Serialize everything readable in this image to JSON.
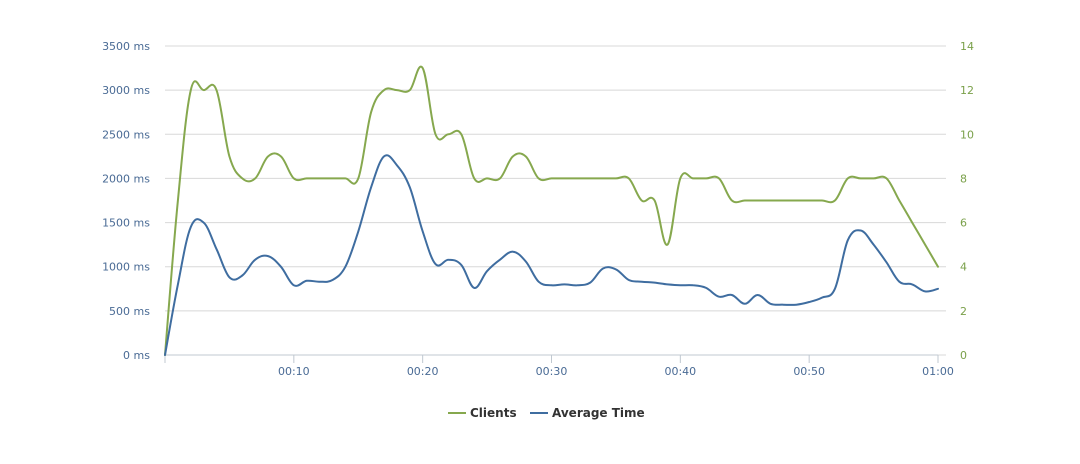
{
  "colors": {
    "clients": "#86a84e",
    "average_time": "#3f6da0",
    "grid": "#d8d8d8",
    "axis": "#c0c8d0"
  },
  "chart_data": {
    "type": "line",
    "x_ticks": [
      "00:10",
      "00:20",
      "00:30",
      "00:40",
      "00:50",
      "01:00"
    ],
    "x_tick_values": [
      10,
      20,
      30,
      40,
      50,
      60
    ],
    "xlim": [
      0,
      60
    ],
    "y_left_ticks": [
      "0 ms",
      "500 ms",
      "1000 ms",
      "1500 ms",
      "2000 ms",
      "2500 ms",
      "3000 ms",
      "3500 ms"
    ],
    "y_left_lim": [
      0,
      3500
    ],
    "y_right_ticks": [
      "0",
      "2",
      "4",
      "6",
      "8",
      "10",
      "12",
      "14"
    ],
    "y_right_lim": [
      0,
      14
    ],
    "grid": true,
    "legend_position": "bottom-center",
    "series": [
      {
        "name": "Clients",
        "axis": "right",
        "color": "#86a84e",
        "x": [
          0,
          1,
          2,
          3,
          4,
          5,
          6,
          7,
          8,
          9,
          10,
          11,
          12,
          13,
          14,
          15,
          16,
          17,
          18,
          19,
          20,
          21,
          22,
          23,
          24,
          25,
          26,
          27,
          28,
          29,
          30,
          31,
          32,
          33,
          34,
          35,
          36,
          37,
          38,
          39,
          40,
          41,
          42,
          43,
          44,
          45,
          46,
          47,
          48,
          49,
          50,
          51,
          52,
          53,
          54,
          55,
          56,
          57,
          58,
          59,
          60
        ],
        "values": [
          0,
          7,
          12,
          12,
          12,
          9,
          8,
          8,
          9,
          9,
          8,
          8,
          8,
          8,
          8,
          8,
          11,
          12,
          12,
          12,
          13,
          10,
          10,
          10,
          8,
          8,
          8,
          9,
          9,
          8,
          8,
          8,
          8,
          8,
          8,
          8,
          8,
          7,
          7,
          5,
          8,
          8,
          8,
          8,
          7,
          7,
          7,
          7,
          7,
          7,
          7,
          7,
          7,
          8,
          8,
          8,
          8,
          7,
          6,
          5,
          4
        ]
      },
      {
        "name": "Average Time",
        "axis": "left",
        "color": "#3f6da0",
        "x": [
          0,
          1,
          2,
          3,
          4,
          5,
          6,
          7,
          8,
          9,
          10,
          11,
          12,
          13,
          14,
          15,
          16,
          17,
          18,
          19,
          20,
          21,
          22,
          23,
          24,
          25,
          26,
          27,
          28,
          29,
          30,
          31,
          32,
          33,
          34,
          35,
          36,
          37,
          38,
          39,
          40,
          41,
          42,
          43,
          44,
          45,
          46,
          47,
          48,
          49,
          50,
          51,
          52,
          53,
          54,
          55,
          56,
          57,
          58,
          59,
          60
        ],
        "values": [
          0,
          800,
          1450,
          1500,
          1200,
          880,
          900,
          1080,
          1120,
          1000,
          790,
          840,
          830,
          850,
          1000,
          1400,
          1900,
          2250,
          2150,
          1900,
          1400,
          1030,
          1080,
          1020,
          760,
          950,
          1080,
          1170,
          1060,
          830,
          790,
          800,
          790,
          820,
          980,
          970,
          850,
          830,
          820,
          800,
          790,
          790,
          760,
          660,
          680,
          580,
          680,
          580,
          570,
          570,
          600,
          650,
          750,
          1300,
          1410,
          1250,
          1050,
          830,
          800,
          720,
          750
        ]
      }
    ]
  }
}
